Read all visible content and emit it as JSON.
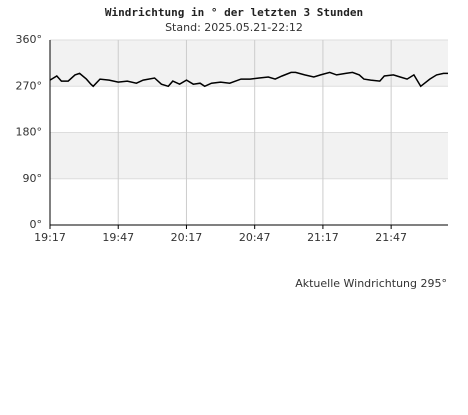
{
  "chart_data": {
    "type": "line",
    "title": "Windrichtung in ° der letzten 3 Stunden",
    "subtitle": "Stand: 2025.05.21-22:12",
    "annotation": "Aktuelle Windrichtung 295°",
    "color": "#000000",
    "grid": true,
    "x": [
      "19:17",
      "19:20",
      "19:22",
      "19:25",
      "19:28",
      "19:30",
      "19:33",
      "19:35",
      "19:36",
      "19:39",
      "19:43",
      "19:47",
      "19:51",
      "19:55",
      "19:58",
      "20:03",
      "20:06",
      "20:09",
      "20:11",
      "20:14",
      "20:17",
      "20:20",
      "20:23",
      "20:25",
      "20:28",
      "20:32",
      "20:36",
      "20:41",
      "20:45",
      "20:49",
      "20:53",
      "20:56",
      "20:59",
      "21:03",
      "21:05",
      "21:09",
      "21:13",
      "21:16",
      "21:20",
      "21:23",
      "21:27",
      "21:30",
      "21:33",
      "21:35",
      "21:38",
      "21:42",
      "21:44",
      "21:48",
      "21:51",
      "21:54",
      "21:57",
      "22:00",
      "22:04",
      "22:07",
      "22:10",
      "22:12"
    ],
    "values": [
      282,
      290,
      280,
      280,
      292,
      295,
      284,
      274,
      270,
      284,
      282,
      278,
      280,
      276,
      282,
      286,
      274,
      270,
      280,
      274,
      282,
      274,
      276,
      270,
      276,
      278,
      276,
      284,
      284,
      286,
      288,
      284,
      290,
      297,
      297,
      292,
      288,
      292,
      297,
      292,
      295,
      297,
      292,
      284,
      282,
      280,
      290,
      292,
      288,
      284,
      292,
      270,
      284,
      292,
      295,
      295
    ],
    "xlim": [
      "19:17",
      "22:12"
    ],
    "xticks": [
      "19:17",
      "19:47",
      "20:17",
      "20:47",
      "21:17",
      "21:47"
    ],
    "ylim": [
      0,
      360
    ],
    "yticks": [
      {
        "value": 0,
        "label": "0°"
      },
      {
        "value": 90,
        "label": "90°"
      },
      {
        "value": 180,
        "label": "180°"
      },
      {
        "value": 270,
        "label": "270°"
      },
      {
        "value": 360,
        "label": "360°"
      }
    ]
  }
}
